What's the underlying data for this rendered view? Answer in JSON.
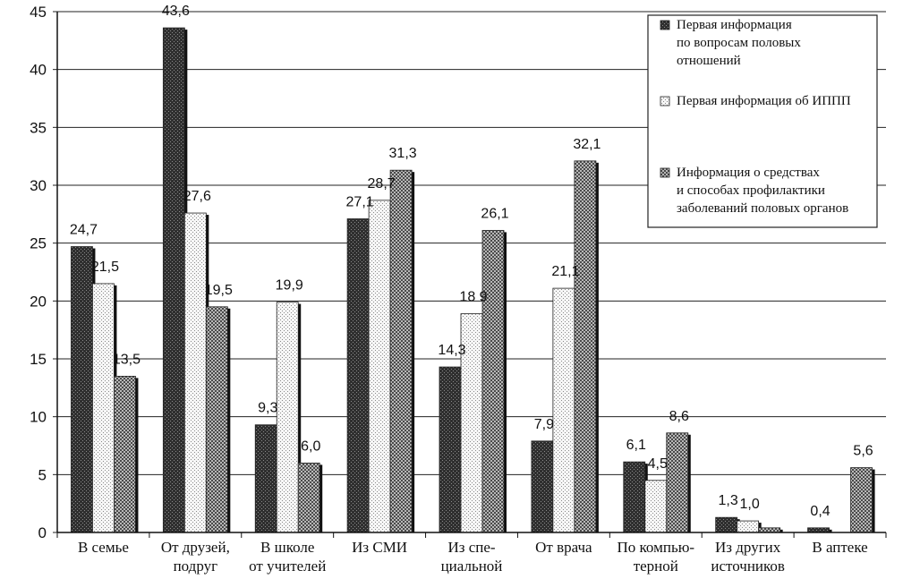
{
  "chart_data": {
    "type": "bar",
    "title": "",
    "xlabel": "",
    "ylabel": "",
    "ylim": [
      0,
      45
    ],
    "yticks": [
      0,
      5,
      10,
      15,
      20,
      25,
      30,
      35,
      40,
      45
    ],
    "grid": true,
    "legend_position": "top-right",
    "categories": [
      [
        "В семье"
      ],
      [
        "От друзей,",
        "подруг"
      ],
      [
        "В школе",
        "от учителей"
      ],
      [
        "Из СМИ"
      ],
      [
        "Из спе-",
        "циальной"
      ],
      [
        "От врача"
      ],
      [
        "По компью-",
        "терной"
      ],
      [
        "Из других",
        "источников"
      ],
      [
        "В аптеке"
      ]
    ],
    "series": [
      {
        "name": [
          "Первая информация",
          "по вопросам половых",
          "отношений"
        ],
        "values": [
          24.7,
          43.6,
          9.3,
          27.1,
          14.3,
          7.9,
          6.1,
          1.3,
          0.4
        ],
        "labels": [
          "24,7",
          "43,6",
          "9,3",
          "27,1",
          "14,3",
          "7,9",
          "6,1",
          "1,3",
          "0,4"
        ],
        "color": "#3a3a3a"
      },
      {
        "name": [
          "Первая информация об ИППП"
        ],
        "values": [
          21.5,
          27.6,
          19.9,
          28.7,
          18.9,
          21.1,
          4.5,
          1.0,
          0
        ],
        "labels": [
          "21,5",
          "27,6",
          "19,9",
          "28,7",
          "18 9",
          "21,1",
          "4,5",
          "1,0",
          ""
        ],
        "color": "#f2f2f2"
      },
      {
        "name": [
          "Информация о средствах",
          "и способах профилактики",
          "заболеваний половых органов"
        ],
        "values": [
          13.5,
          19.5,
          6.0,
          31.3,
          26.1,
          32.1,
          8.6,
          0.4,
          5.6
        ],
        "labels": [
          "13,5",
          "19,5",
          "6,0",
          "31,3",
          "26,1",
          "32,1",
          "8,6",
          "",
          "5,6"
        ],
        "color": "#9a9a9a"
      }
    ]
  }
}
